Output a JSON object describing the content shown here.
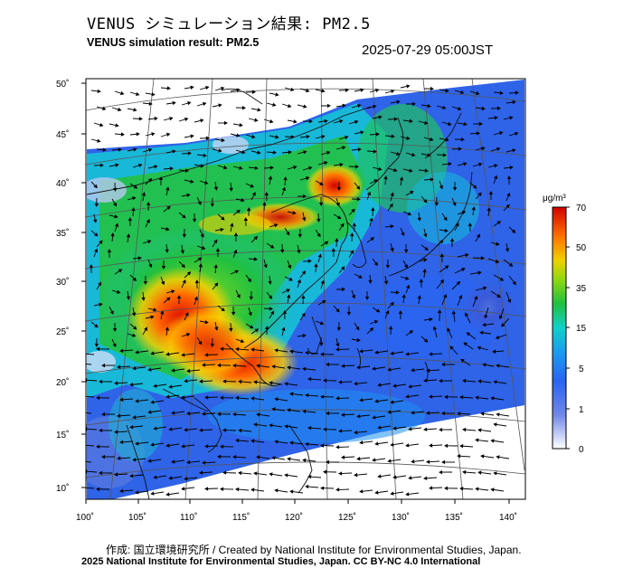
{
  "header": {
    "title_jp": "VENUS シミュレーション結果: PM2.5",
    "title_en": "VENUS simulation result: PM2.5",
    "timestamp": "2025-07-29 05:00JST"
  },
  "map": {
    "variable": "PM2.5",
    "lon_range": [
      100,
      141
    ],
    "lat_range": [
      9,
      51
    ],
    "x_ticks": [
      "100˚",
      "105˚",
      "110˚",
      "115˚",
      "120˚",
      "125˚",
      "130˚",
      "135˚",
      "140˚"
    ],
    "y_ticks": [
      "10˚",
      "15˚",
      "20˚",
      "25˚",
      "30˚",
      "35˚",
      "40˚",
      "45˚",
      "50˚"
    ],
    "wind_vectors": "shown",
    "high_concentration_regions": [
      "southern China",
      "Yellow Sea / Bohai region"
    ],
    "typhoon_vortex": "east of Okinawa"
  },
  "colorbar": {
    "unit": "μg/m³",
    "tick_labels": [
      "0",
      "1",
      "5",
      "15",
      "35",
      "50",
      "70"
    ],
    "colors": [
      "#ffffff",
      "#3c50d8",
      "#1e8cff",
      "#10d0d0",
      "#20c030",
      "#f0d000",
      "#ff6000",
      "#d00000"
    ]
  },
  "footer": {
    "credit": "作成: 国立環境研究所 / Created by National Institute for Environmental Studies, Japan.",
    "license": "2025 National Institute for Environmental Studies, Japan. CC BY-NC 4.0 International"
  }
}
